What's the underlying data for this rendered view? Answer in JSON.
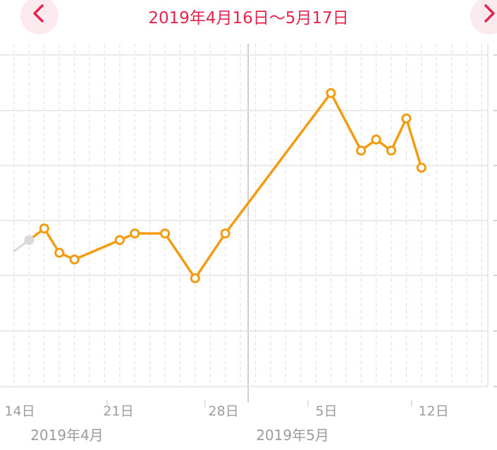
{
  "header": {
    "title": "2019年4月16日～5月17日",
    "prev_icon": "chevron-left-icon",
    "next_icon": "chevron-right-icon"
  },
  "colors": {
    "accent": "#e6234d",
    "accent_bg": "#fcebee",
    "line": "#f39c12",
    "faded_line": "#d9d9d9",
    "grid": "#e4e4e4",
    "text_muted": "#9c9c9c"
  },
  "chart_data": {
    "type": "line",
    "title": "",
    "xlabel": "",
    "ylabel": "",
    "grid": true,
    "x_tick_labels": [
      "14日",
      "21日",
      "28日",
      "5日",
      "12日"
    ],
    "month_labels": [
      "2019年4月",
      "2019年5月"
    ],
    "series": [
      {
        "points": [
          {
            "x": "2019-04-15",
            "y": 2.65
          },
          {
            "x": "2019-04-16",
            "y": 2.86
          },
          {
            "x": "2019-04-17",
            "y": 2.42
          },
          {
            "x": "2019-04-18",
            "y": 2.3
          },
          {
            "x": "2019-04-21",
            "y": 2.65
          },
          {
            "x": "2019-04-22",
            "y": 2.77
          },
          {
            "x": "2019-04-24",
            "y": 2.77
          },
          {
            "x": "2019-04-26",
            "y": 1.96
          },
          {
            "x": "2019-04-28",
            "y": 2.77
          },
          {
            "x": "2019-05-05",
            "y": 5.31
          },
          {
            "x": "2019-05-07",
            "y": 4.27
          },
          {
            "x": "2019-05-08",
            "y": 4.47
          },
          {
            "x": "2019-05-09",
            "y": 4.27
          },
          {
            "x": "2019-05-10",
            "y": 4.85
          },
          {
            "x": "2019-05-11",
            "y": 3.96
          }
        ]
      },
      {
        "faded": true,
        "points": [
          {
            "x": "2019-04-14",
            "y": 2.45
          },
          {
            "x": "2019-04-15",
            "y": 2.65
          }
        ]
      }
    ]
  }
}
